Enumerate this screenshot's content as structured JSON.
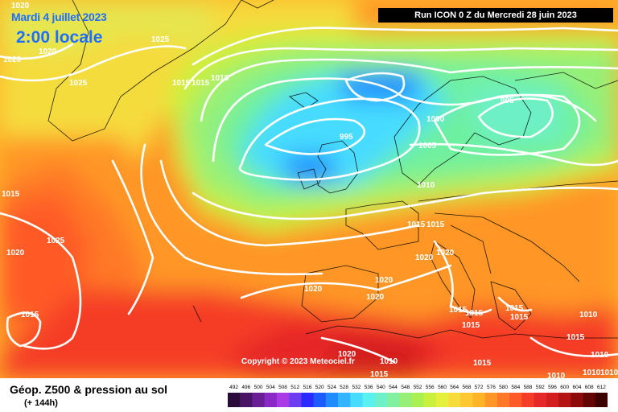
{
  "header": {
    "date": "Mardi 4 juillet 2023",
    "local_time": "2:00 locale",
    "run_info": "Run ICON 0 Z du Mercredi 28 juin 2023"
  },
  "footer": {
    "field_name": "Géop. Z500 & pression au sol",
    "lead_time": "(+ 144h)",
    "copyright": "Copyright © 2023 Meteociel.fr"
  },
  "legend": {
    "ticks": [
      "492",
      "496",
      "500",
      "504",
      "508",
      "512",
      "516",
      "520",
      "524",
      "528",
      "532",
      "536",
      "540",
      "544",
      "548",
      "552",
      "556",
      "560",
      "564",
      "568",
      "572",
      "576",
      "580",
      "584",
      "588",
      "592",
      "596",
      "600",
      "604",
      "608",
      "612"
    ],
    "colors": [
      "#2a0a3a",
      "#4a1466",
      "#6a1e96",
      "#8a28c6",
      "#aa3ae6",
      "#6e3cf0",
      "#2a2aff",
      "#1e5aff",
      "#1e8cff",
      "#32b4ff",
      "#46dcff",
      "#5af0f0",
      "#6ef0c8",
      "#82f0a0",
      "#96f078",
      "#aaf050",
      "#c8f03c",
      "#e6f03c",
      "#f5dc3c",
      "#ffc832",
      "#ffb428",
      "#ff9628",
      "#ff7828",
      "#ff5a28",
      "#f53c28",
      "#e62828",
      "#d21e1e",
      "#b41414",
      "#8c0a0a",
      "#640505",
      "#3c0000"
    ]
  },
  "isobars": [
    "1020",
    "1020",
    "1025",
    "1020",
    "1025",
    "1015",
    "1015",
    "1015",
    "995",
    "995",
    "1000",
    "1005",
    "1010",
    "1015",
    "1015",
    "1015",
    "1025",
    "1020",
    "1020",
    "1020",
    "1020",
    "1020",
    "1020",
    "1015",
    "1015",
    "1015",
    "1015",
    "1015",
    "1015",
    "1015",
    "1010",
    "1010",
    "1010",
    "1010",
    "1010",
    "1020",
    "1010",
    "1015",
    "1015"
  ]
}
